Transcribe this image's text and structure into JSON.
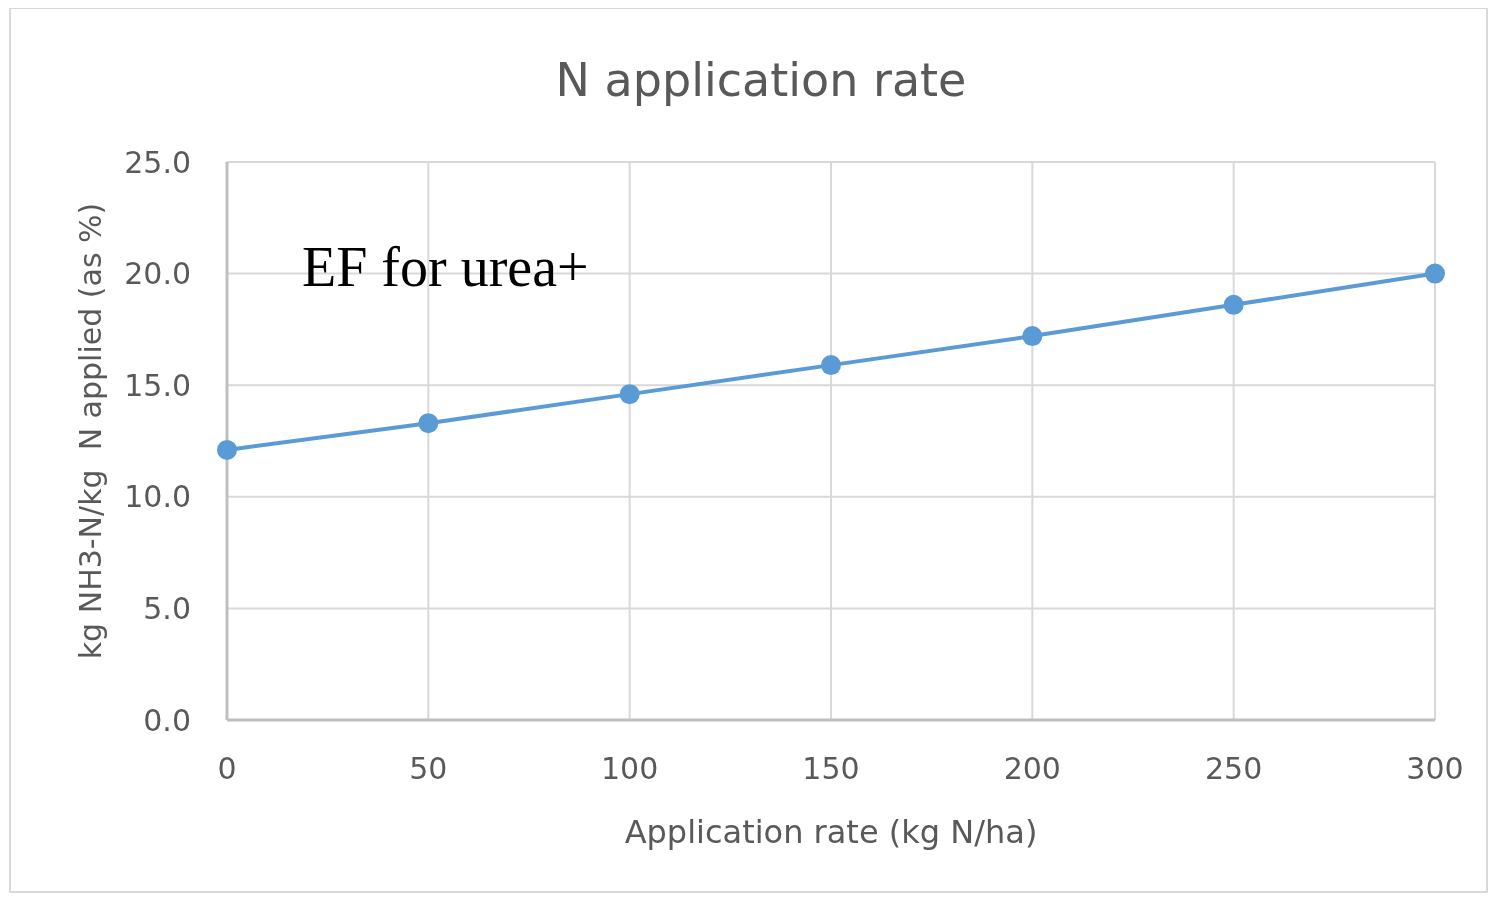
{
  "chart_data": {
    "type": "line",
    "title": "N application rate",
    "xlabel": "Application rate (kg N/ha)",
    "ylabel": "kg NH3-N/kg  N applied (as %)",
    "x": [
      0,
      50,
      100,
      150,
      200,
      250,
      300
    ],
    "series": [
      {
        "color": "#5b9bd5",
        "values": [
          12.1,
          13.3,
          14.6,
          15.9,
          17.2,
          18.6,
          20.0
        ]
      }
    ],
    "xlim": [
      0,
      300
    ],
    "xticks": [
      0,
      50,
      100,
      150,
      200,
      250,
      300
    ],
    "ylim": [
      0,
      25
    ],
    "yticks": [
      {
        "value": 0,
        "label": "0.0"
      },
      {
        "value": 5,
        "label": "5.0"
      },
      {
        "value": 10,
        "label": "10.0"
      },
      {
        "value": 15,
        "label": "15.0"
      },
      {
        "value": 20,
        "label": "20.0"
      },
      {
        "value": 25,
        "label": "25.0"
      }
    ],
    "grid": true,
    "marker": "circle",
    "line_style": "solid",
    "annotations": [
      "EF for urea+"
    ]
  }
}
